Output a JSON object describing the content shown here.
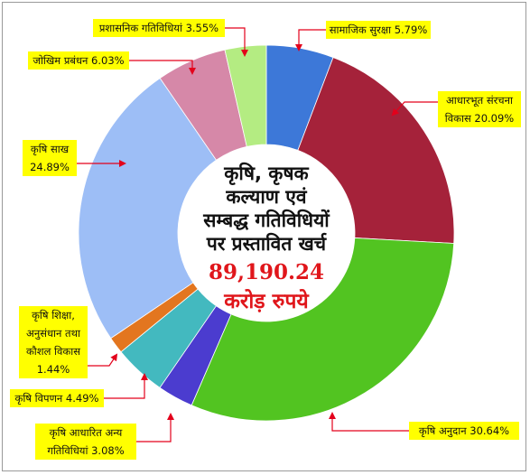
{
  "chart_data": {
    "type": "pie",
    "donut": true,
    "center_text": {
      "lines": [
        "कृषि, कृषक",
        "कल्याण एवं",
        "सम्बद्ध गतिविधियों",
        "पर प्रस्तावित खर्च"
      ],
      "amount": "89,190.24",
      "unit": "करोड़ रुपये"
    },
    "slices": [
      {
        "label_lines": [
          "सामाजिक सुरक्षा 5.79%"
        ],
        "value": 5.79,
        "color": "#3d78d8"
      },
      {
        "label_lines": [
          "आधारभूत संरचना",
          "विकास 20.09%"
        ],
        "value": 20.09,
        "color": "#a5223a"
      },
      {
        "label_lines": [
          "कृषि अनुदान 30.64%"
        ],
        "value": 30.64,
        "color": "#52c421"
      },
      {
        "label_lines": [
          "कृषि आधारित अन्य",
          "गतिविधियां 3.08%"
        ],
        "value": 3.08,
        "color": "#4b3ccf"
      },
      {
        "label_lines": [
          "कृषि विपणन 4.49%"
        ],
        "value": 4.49,
        "color": "#43b9bf"
      },
      {
        "label_lines": [
          "कृषि शिक्षा,",
          "अनुसंधान तथा",
          "कौशल विकास",
          "1.44%"
        ],
        "value": 1.44,
        "color": "#e3761f"
      },
      {
        "label_lines": [
          "कृषि साख",
          "24.89%"
        ],
        "value": 24.89,
        "color": "#9dbef6"
      },
      {
        "label_lines": [
          "जोखिम प्रबंधन 6.03%"
        ],
        "value": 6.03,
        "color": "#d688a8"
      },
      {
        "label_lines": [
          "प्रशासनिक गतिविधियां 3.55%"
        ],
        "value": 3.55,
        "color": "#b4ec82"
      }
    ],
    "colors": {
      "label_background": "#ffff00",
      "arrow": "#e3001b"
    }
  }
}
